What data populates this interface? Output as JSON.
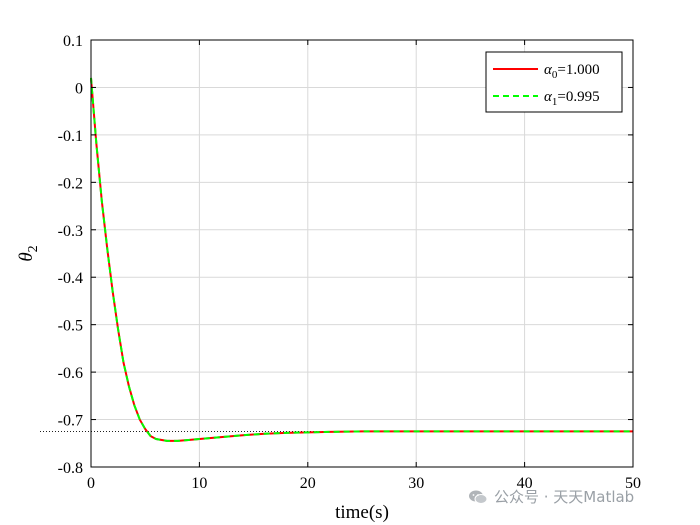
{
  "chart_data": {
    "type": "line",
    "title": "",
    "xlabel": "time(s)",
    "ylabel_symbol": "θ",
    "ylabel_sub": "2",
    "xlim": [
      0,
      50
    ],
    "ylim": [
      -0.8,
      0.1
    ],
    "xticks": [
      0,
      10,
      20,
      30,
      40,
      50
    ],
    "yticks": [
      0.1,
      0,
      -0.1,
      -0.2,
      -0.3,
      -0.4,
      -0.5,
      -0.6,
      -0.7,
      -0.8
    ],
    "ytick_labels": [
      "0.1",
      "0",
      "-0.1",
      "-0.2",
      "-0.3",
      "-0.4",
      "-0.5",
      "-0.6",
      "-0.7",
      "-0.8"
    ],
    "grid": true,
    "legend_position": "top-right",
    "reference_line": {
      "y": -0.725,
      "style": "dotted",
      "color": "#000000"
    },
    "series": [
      {
        "name_symbol": "α",
        "name_sub": "0",
        "name_value": "=1.000",
        "color": "#ff0000",
        "style": "solid",
        "x": [
          0,
          0.25,
          0.5,
          0.75,
          1,
          1.5,
          2,
          2.5,
          3,
          3.5,
          4,
          4.5,
          5,
          5.5,
          6,
          7,
          8,
          9,
          10,
          12,
          14,
          16,
          18,
          20,
          22,
          25,
          30,
          35,
          40,
          45,
          50
        ],
        "y": [
          0.02,
          -0.05,
          -0.12,
          -0.18,
          -0.24,
          -0.34,
          -0.43,
          -0.51,
          -0.58,
          -0.63,
          -0.67,
          -0.7,
          -0.72,
          -0.735,
          -0.741,
          -0.745,
          -0.745,
          -0.743,
          -0.741,
          -0.737,
          -0.733,
          -0.73,
          -0.728,
          -0.727,
          -0.726,
          -0.725,
          -0.725,
          -0.725,
          -0.725,
          -0.725,
          -0.725
        ]
      },
      {
        "name_symbol": "α",
        "name_sub": "1",
        "name_value": "=0.995",
        "color": "#00ff00",
        "style": "dashed",
        "x": [
          0,
          0.25,
          0.5,
          0.75,
          1,
          1.5,
          2,
          2.5,
          3,
          3.5,
          4,
          4.5,
          5,
          5.5,
          6,
          7,
          8,
          9,
          10,
          12,
          14,
          16,
          18,
          20,
          22,
          25,
          30,
          35,
          40,
          45,
          50
        ],
        "y": [
          0.02,
          -0.05,
          -0.12,
          -0.18,
          -0.24,
          -0.34,
          -0.43,
          -0.51,
          -0.58,
          -0.63,
          -0.67,
          -0.7,
          -0.72,
          -0.735,
          -0.741,
          -0.745,
          -0.745,
          -0.743,
          -0.741,
          -0.737,
          -0.733,
          -0.73,
          -0.728,
          -0.727,
          -0.726,
          -0.725,
          -0.725,
          -0.725,
          -0.725,
          -0.725,
          -0.725
        ]
      }
    ]
  },
  "watermark": {
    "text": "公众号 · 天天Matlab",
    "icon": "wechat-icon"
  }
}
